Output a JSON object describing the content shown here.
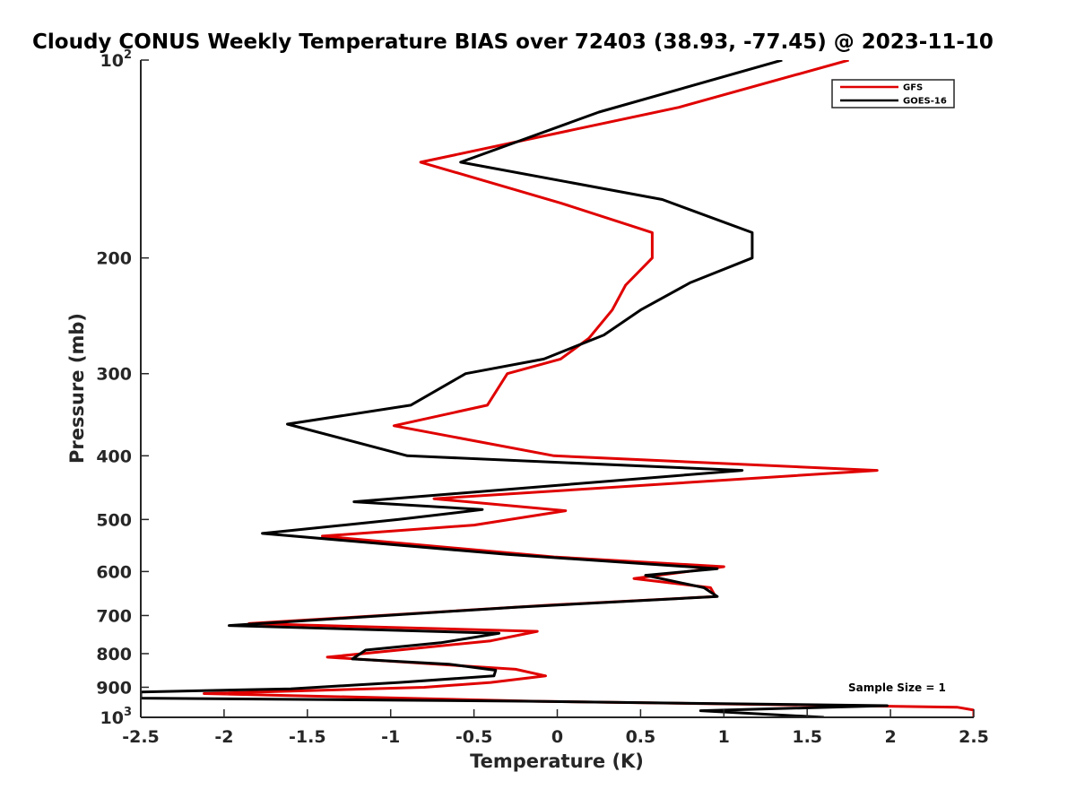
{
  "chart_data": {
    "type": "line",
    "title": "Cloudy CONUS Weekly Temperature BIAS over 72403 (38.93, -77.45) @ 2023-11-10",
    "xlabel": "Temperature (K)",
    "ylabel": "Pressure (mb)",
    "xlim": [
      -2.5,
      2.5
    ],
    "ylim": [
      100,
      1000
    ],
    "y_scale": "log",
    "y_reversed": true,
    "x_ticks": [
      "-2.5",
      "-2",
      "-1.5",
      "-1",
      "-0.5",
      "0",
      "0.5",
      "1",
      "1.5",
      "2",
      "2.5"
    ],
    "y_ticks": [
      {
        "value": 100,
        "label": "10",
        "sup": "2"
      },
      {
        "value": 200,
        "label": "200",
        "sup": ""
      },
      {
        "value": 300,
        "label": "300",
        "sup": ""
      },
      {
        "value": 400,
        "label": "400",
        "sup": ""
      },
      {
        "value": 500,
        "label": "500",
        "sup": ""
      },
      {
        "value": 600,
        "label": "600",
        "sup": ""
      },
      {
        "value": 700,
        "label": "700",
        "sup": ""
      },
      {
        "value": 800,
        "label": "800",
        "sup": ""
      },
      {
        "value": 900,
        "label": "900",
        "sup": ""
      },
      {
        "value": 1000,
        "label": "10",
        "sup": "3"
      }
    ],
    "grid": false,
    "legend_position": "top-right",
    "annotation": "Sample Size = 1",
    "series": [
      {
        "name": "GFS",
        "color": "#e00000",
        "points": [
          {
            "x": 1.75,
            "y": 100
          },
          {
            "x": 0.73,
            "y": 118
          },
          {
            "x": -0.82,
            "y": 143
          },
          {
            "x": 0.02,
            "y": 165
          },
          {
            "x": 0.57,
            "y": 183
          },
          {
            "x": 0.57,
            "y": 200
          },
          {
            "x": 0.41,
            "y": 220
          },
          {
            "x": 0.33,
            "y": 240
          },
          {
            "x": 0.19,
            "y": 265
          },
          {
            "x": 0.02,
            "y": 285
          },
          {
            "x": -0.3,
            "y": 300
          },
          {
            "x": -0.42,
            "y": 335
          },
          {
            "x": -0.98,
            "y": 360
          },
          {
            "x": -0.02,
            "y": 400
          },
          {
            "x": 1.92,
            "y": 421
          },
          {
            "x": -0.74,
            "y": 465
          },
          {
            "x": 0.05,
            "y": 485
          },
          {
            "x": -0.5,
            "y": 510
          },
          {
            "x": -1.41,
            "y": 530
          },
          {
            "x": -0.02,
            "y": 570
          },
          {
            "x": 1.0,
            "y": 590
          },
          {
            "x": 0.46,
            "y": 615
          },
          {
            "x": 0.92,
            "y": 635
          },
          {
            "x": 0.95,
            "y": 655
          },
          {
            "x": -0.05,
            "y": 675
          },
          {
            "x": -1.85,
            "y": 720
          },
          {
            "x": -0.12,
            "y": 740
          },
          {
            "x": -0.4,
            "y": 765
          },
          {
            "x": -1.38,
            "y": 810
          },
          {
            "x": -0.25,
            "y": 845
          },
          {
            "x": -0.07,
            "y": 865
          },
          {
            "x": -0.4,
            "y": 885
          },
          {
            "x": -0.8,
            "y": 900
          },
          {
            "x": -2.12,
            "y": 920
          },
          {
            "x": -0.15,
            "y": 945
          },
          {
            "x": 2.4,
            "y": 965
          },
          {
            "x": 2.5,
            "y": 975
          },
          {
            "x": 2.5,
            "y": 1000
          }
        ]
      },
      {
        "name": "GOES-16",
        "color": "#000000",
        "points": [
          {
            "x": 1.35,
            "y": 100
          },
          {
            "x": 0.25,
            "y": 120
          },
          {
            "x": -0.58,
            "y": 143
          },
          {
            "x": 0.63,
            "y": 163
          },
          {
            "x": 1.17,
            "y": 183
          },
          {
            "x": 1.17,
            "y": 200
          },
          {
            "x": 0.8,
            "y": 218
          },
          {
            "x": 0.5,
            "y": 240
          },
          {
            "x": 0.28,
            "y": 262
          },
          {
            "x": -0.08,
            "y": 285
          },
          {
            "x": -0.55,
            "y": 300
          },
          {
            "x": -0.88,
            "y": 335
          },
          {
            "x": -1.62,
            "y": 358
          },
          {
            "x": -0.9,
            "y": 400
          },
          {
            "x": 1.11,
            "y": 421
          },
          {
            "x": -1.22,
            "y": 470
          },
          {
            "x": -0.45,
            "y": 483
          },
          {
            "x": -0.95,
            "y": 500
          },
          {
            "x": -1.77,
            "y": 525
          },
          {
            "x": -0.3,
            "y": 565
          },
          {
            "x": 0.96,
            "y": 594
          },
          {
            "x": 0.53,
            "y": 608
          },
          {
            "x": 0.88,
            "y": 635
          },
          {
            "x": 0.96,
            "y": 655
          },
          {
            "x": -0.25,
            "y": 680
          },
          {
            "x": -1.97,
            "y": 725
          },
          {
            "x": -0.35,
            "y": 745
          },
          {
            "x": -0.7,
            "y": 770
          },
          {
            "x": -1.15,
            "y": 790
          },
          {
            "x": -1.23,
            "y": 815
          },
          {
            "x": -0.65,
            "y": 830
          },
          {
            "x": -0.37,
            "y": 848
          },
          {
            "x": -0.38,
            "y": 865
          },
          {
            "x": -0.95,
            "y": 885
          },
          {
            "x": -1.6,
            "y": 905
          },
          {
            "x": -2.5,
            "y": 915
          },
          {
            "x": -2.5,
            "y": 935
          },
          {
            "x": -0.2,
            "y": 945
          },
          {
            "x": 1.98,
            "y": 960
          },
          {
            "x": 0.86,
            "y": 977
          },
          {
            "x": 1.6,
            "y": 1000
          }
        ]
      }
    ]
  }
}
